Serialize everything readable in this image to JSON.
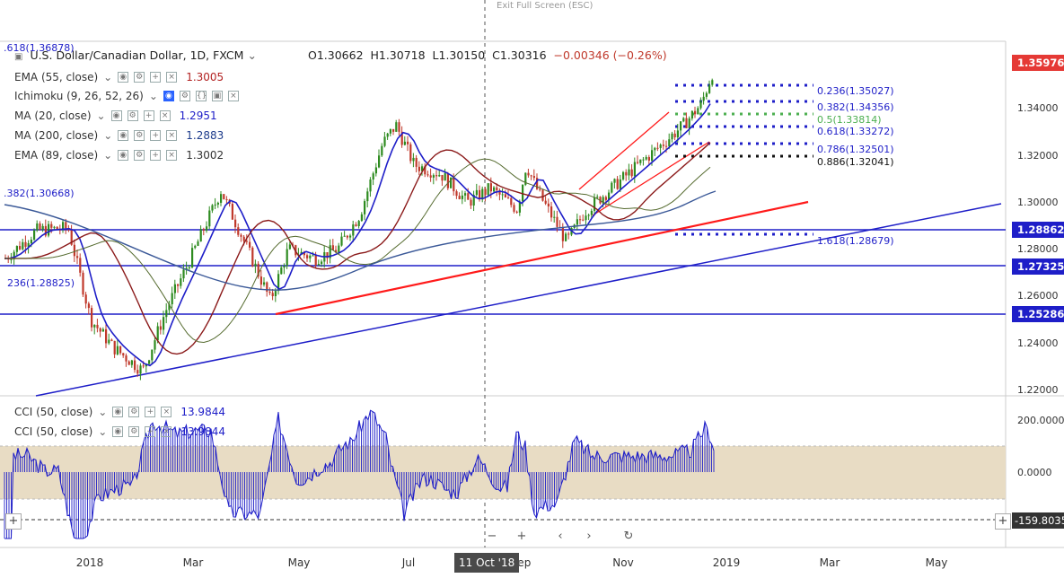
{
  "exit_full_screen": "Exit Full Screen (ESC)",
  "symbol": {
    "title": "U.S. Dollar/Canadian Dollar, 1D, FXCM",
    "open": "O1.30662",
    "high": "H1.30718",
    "low": "L1.30150",
    "close": "C1.30316",
    "change": "−0.00346 (−0.26%)"
  },
  "indicators": [
    {
      "label": "EMA (55, close)",
      "value": "1.3005",
      "color": "#b22222"
    },
    {
      "label": "Ichimoku (9, 26, 52, 26)",
      "value": "",
      "color": "#2962ff"
    },
    {
      "label": "MA (20, close)",
      "value": "1.2951",
      "color": "#1e1ec8"
    },
    {
      "label": "MA (200, close)",
      "value": "1.2883",
      "color": "#1e3c8c"
    },
    {
      "label": "EMA (89, close)",
      "value": "1.3002",
      "color": "#333333"
    }
  ],
  "cci_indicators": [
    {
      "label": "CCI (50, close)",
      "value": "13.9844"
    },
    {
      "label": "CCI (50, close)",
      "value": "13.9844"
    }
  ],
  "price_axis": {
    "ticks": [
      "1.34000",
      "1.32000",
      "1.30000",
      "1.28000",
      "1.26000",
      "1.24000",
      "1.22000"
    ],
    "last_price": "1.35976",
    "levels": [
      "1.28862",
      "1.27325",
      "1.25286"
    ]
  },
  "cci_axis": {
    "ticks": [
      "200.0000",
      "0.0000"
    ],
    "current": "-159.8035"
  },
  "fibonacci": [
    {
      "label": "0.236(1.35027)",
      "color": "#1e1ec8"
    },
    {
      "label": "0.382(1.34356)",
      "color": "#1e1ec8"
    },
    {
      "label": "0.5(1.33814)",
      "color": "#4caf50"
    },
    {
      "label": "0.618(1.33272)",
      "color": "#1e1ec8"
    },
    {
      "label": "0.786(1.32501)",
      "color": "#1e1ec8"
    },
    {
      "label": "0.886(1.32041)",
      "color": "#111111"
    },
    {
      "label": "1.618(1.28679)",
      "color": "#1e1ec8"
    }
  ],
  "fib_left": {
    "top": ".618(1.36878)",
    "mid": ".382(1.30668)",
    "low": "236(1.28825)"
  },
  "time_axis": [
    "2018",
    "Mar",
    "May",
    "Jul",
    "Sep",
    "Nov",
    "2019",
    "Mar",
    "May"
  ],
  "crosshair_date": "11 Oct '18",
  "colors": {
    "up": "#2e8b20",
    "down": "#c0392b",
    "last_price_tag": "#e53935",
    "level_tag": "#1e1ec8",
    "trendline_red": "#ff1a1a",
    "trendline_blue": "#1e1ec8",
    "cci_line": "#1e1ec8",
    "cci_band": "#e8dcc4"
  }
}
